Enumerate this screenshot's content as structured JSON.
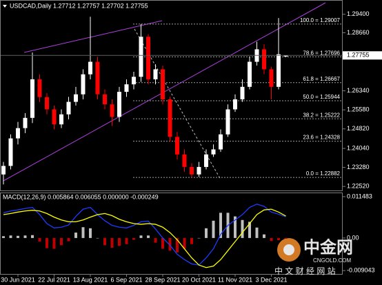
{
  "chart_data": [
    {
      "type": "candlestick",
      "title": "USDCAD,Daily 1.27712 1.27757 1.27702 1.27755",
      "categories": [
        null,
        null,
        "30 Jun 2021",
        null,
        null,
        null,
        null,
        "22 Jul 2021",
        null,
        null,
        null,
        null,
        "13 Aug 2021",
        null,
        null,
        null,
        null,
        "6 Sep 2021",
        null,
        null,
        null,
        null,
        "28 Sep 2021",
        null,
        null,
        null,
        null,
        "20 Oct 2021",
        null,
        null,
        null,
        null,
        "11 Nov 2021",
        null,
        null,
        null,
        null,
        "3 Dec 2021",
        null,
        null
      ],
      "open": [
        1.23,
        1.2334,
        1.2444,
        1.2485,
        1.2526,
        1.268,
        1.2609,
        1.256,
        1.25,
        1.254,
        1.259,
        1.262,
        1.27,
        1.275,
        1.262,
        1.258,
        1.253,
        1.263,
        1.266,
        1.269,
        1.285,
        1.268,
        1.272,
        1.26,
        1.245,
        1.238,
        1.233,
        1.23,
        1.233,
        1.238,
        1.24,
        1.246,
        1.256,
        1.26,
        1.265,
        1.275,
        1.28,
        1.272,
        1.265,
        1.27712
      ],
      "high": [
        1.235,
        1.246,
        1.251,
        1.2545,
        1.2787,
        1.27,
        1.2625,
        1.2575,
        1.256,
        1.261,
        1.265,
        1.272,
        1.293,
        1.277,
        1.264,
        1.26,
        1.265,
        1.268,
        1.271,
        1.29007,
        1.286,
        1.274,
        1.2735,
        1.261,
        1.247,
        1.24,
        1.2345,
        1.235,
        1.24,
        1.242,
        1.248,
        1.258,
        1.262,
        1.268,
        1.277,
        1.283,
        1.282,
        1.273,
        1.2925,
        1.27757
      ],
      "low": [
        1.226,
        1.232,
        1.242,
        1.2465,
        1.2505,
        1.259,
        1.254,
        1.248,
        1.2485,
        1.252,
        1.2575,
        1.26,
        1.268,
        1.26,
        1.256,
        1.2494,
        1.251,
        1.261,
        1.264,
        1.267,
        1.266,
        1.266,
        1.258,
        1.243,
        1.236,
        1.231,
        1.22882,
        1.229,
        1.232,
        1.237,
        1.239,
        1.245,
        1.255,
        1.259,
        1.264,
        1.2735,
        1.27,
        1.26,
        1.264,
        1.27702
      ],
      "close": [
        1.2334,
        1.2444,
        1.2485,
        1.2526,
        1.268,
        1.2609,
        1.256,
        1.25,
        1.254,
        1.259,
        1.262,
        1.27,
        1.275,
        1.262,
        1.258,
        1.253,
        1.263,
        1.266,
        1.269,
        1.285,
        1.268,
        1.272,
        1.26,
        1.245,
        1.238,
        1.233,
        1.23,
        1.233,
        1.238,
        1.24,
        1.246,
        1.256,
        1.26,
        1.265,
        1.275,
        1.28,
        1.272,
        1.265,
        1.278,
        1.27755
      ],
      "up_color": "#ffffff",
      "down_color": "#ff0000",
      "ylim": [
        1.2236,
        1.29941
      ],
      "yticks": [
        {
          "value": 1.294,
          "label": "1.29400"
        },
        {
          "value": 1.2866,
          "label": "1.28660"
        },
        {
          "value": 1.2634,
          "label": "1.26340"
        },
        {
          "value": 1.2558,
          "label": "1.25580"
        },
        {
          "value": 1.2482,
          "label": "1.24820"
        },
        {
          "value": 1.2404,
          "label": "1.24040"
        },
        {
          "value": 1.2328,
          "label": "1.23280"
        },
        {
          "value": 1.2252,
          "label": "1.22520"
        }
      ],
      "last_price": 1.27755,
      "fibonacci": [
        {
          "label": "100.0 = 1.29007",
          "price": 1.29007
        },
        {
          "label": "78.6 = 1.27696",
          "price": 1.27696
        },
        {
          "label": "61.8 = 1.26667",
          "price": 1.26667
        },
        {
          "label": "50.0 = 1.25944",
          "price": 1.25944
        },
        {
          "label": "38.2 = 1.25222",
          "price": 1.25222
        },
        {
          "label": "23.6 = 1.24328",
          "price": 1.24328
        },
        {
          "label": "0.0 = 1.22882",
          "price": 1.22882
        }
      ]
    },
    {
      "type": "macd",
      "title": "MACD(12,26,9) 0.005864 0.006055 0.000000 -0.000249",
      "histogram": [
        0.0005,
        0.0007,
        0.0006,
        0.0007,
        0.0008,
        -0.001,
        -0.0028,
        -0.003,
        -0.002,
        -0.0009,
        0.0015,
        0.003,
        0.0027,
        0.0,
        -0.002,
        -0.0027,
        -0.0022,
        -0.0017,
        -0.0005,
        0.0007,
        0.0007,
        -0.0013,
        -0.003,
        -0.0035,
        -0.004,
        -0.003,
        -0.0017,
        0.0,
        0.0027,
        0.0048,
        0.007,
        0.007,
        0.006,
        0.005,
        0.0045,
        0.0029,
        0.001,
        -0.0008,
        -0.0006,
        -0.0002
      ],
      "histogram_up_color": "#c0c0c0",
      "histogram_down_color": "#c00000",
      "lines": [
        {
          "color": "#1e3cff",
          "values": [
            0.007,
            0.0075,
            0.0078,
            0.0082,
            0.0085,
            0.0065,
            0.004,
            0.0028,
            0.003,
            0.0036,
            0.006,
            0.008,
            0.0085,
            0.0065,
            0.0048,
            0.0035,
            0.003,
            0.0028,
            0.0035,
            0.0045,
            0.0047,
            0.0025,
            0.0,
            -0.002,
            -0.0045,
            -0.006,
            -0.0072,
            -0.0075,
            -0.0055,
            -0.003,
            0.001,
            0.0035,
            0.005,
            0.0065,
            0.0085,
            0.0094,
            0.0088,
            0.0072,
            0.0066,
            0.0059
          ]
        },
        {
          "color": "#ffff00",
          "values": [
            0.0065,
            0.0068,
            0.0072,
            0.0075,
            0.0077,
            0.0075,
            0.0068,
            0.0058,
            0.005,
            0.0045,
            0.0045,
            0.005,
            0.0058,
            0.0065,
            0.0068,
            0.0062,
            0.0052,
            0.0045,
            0.004,
            0.0038,
            0.004,
            0.0038,
            0.003,
            0.0015,
            -0.0005,
            -0.003,
            -0.0055,
            -0.0075,
            -0.0082,
            -0.0078,
            -0.006,
            -0.0035,
            -0.001,
            0.0015,
            0.004,
            0.0065,
            0.0078,
            0.008,
            0.0072,
            0.0061
          ]
        }
      ],
      "ylim": [
        -0.00998,
        0.01243
      ],
      "yticks": [
        0.011483,
        {
          "value": 0,
          "label": "0.00"
        },
        -0.009043
      ]
    }
  ],
  "watermark": {
    "name": "中金网",
    "url": "CNGOLD.COM",
    "tagline": "中 文 财 经 网 站"
  }
}
